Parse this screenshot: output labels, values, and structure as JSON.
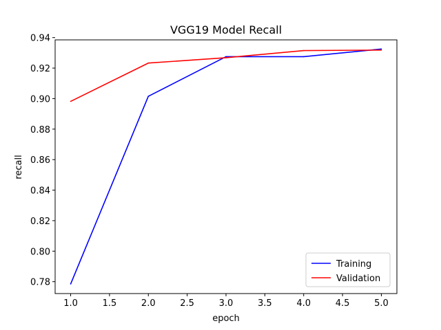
{
  "chart_data": {
    "type": "line",
    "title": "VGG19 Model Recall",
    "xlabel": "epoch",
    "ylabel": "recall",
    "x": [
      1.0,
      2.0,
      3.0,
      4.0,
      5.0
    ],
    "xlim": [
      0.8,
      5.2
    ],
    "ylim": [
      0.7722,
      0.9385
    ],
    "x_ticks": [
      1.0,
      1.5,
      2.0,
      2.5,
      3.0,
      3.5,
      4.0,
      4.5,
      5.0
    ],
    "x_tick_labels": [
      "1.0",
      "1.5",
      "2.0",
      "2.5",
      "3.0",
      "3.5",
      "4.0",
      "4.5",
      "5.0"
    ],
    "y_ticks": [
      0.78,
      0.8,
      0.82,
      0.84,
      0.86,
      0.88,
      0.9,
      0.92,
      0.94
    ],
    "y_tick_labels": [
      "0.78",
      "0.80",
      "0.82",
      "0.84",
      "0.86",
      "0.88",
      "0.90",
      "0.92",
      "0.94"
    ],
    "grid": false,
    "legend_position": "lower-right",
    "series": [
      {
        "name": "Training",
        "color": "#0000ff",
        "values": [
          0.7785,
          0.9015,
          0.9275,
          0.9275,
          0.9325
        ]
      },
      {
        "name": "Validation",
        "color": "#ff0000",
        "values": [
          0.8982,
          0.9233,
          0.9268,
          0.9315,
          0.9318
        ]
      }
    ]
  }
}
